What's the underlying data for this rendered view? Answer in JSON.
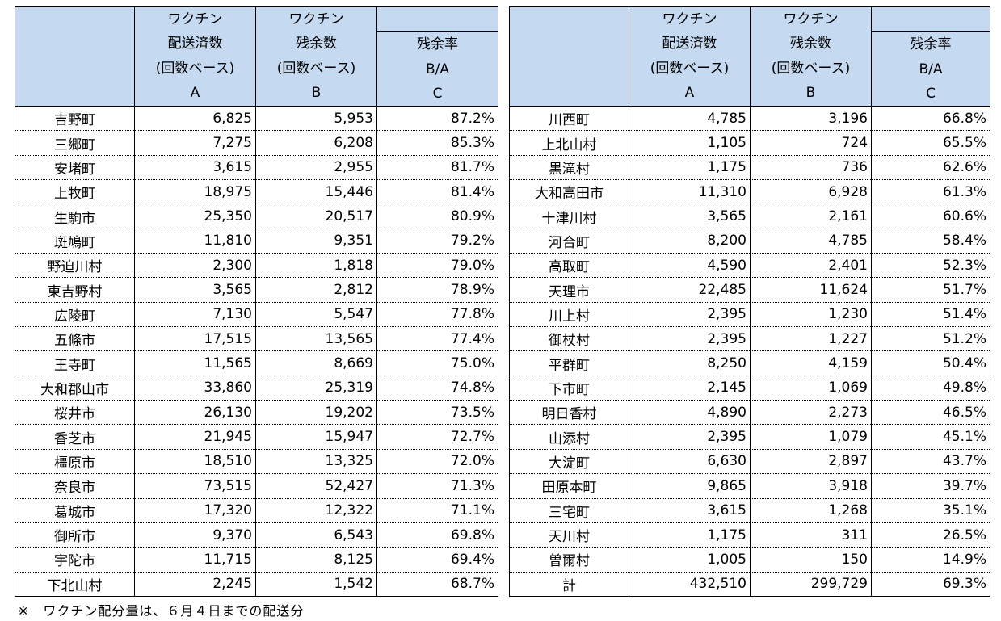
{
  "headers": {
    "col_a": [
      "ワクチン",
      "配送済数",
      "(回数ベース)",
      "A"
    ],
    "col_b": [
      "ワクチン",
      "残余数",
      "(回数ベース)",
      "B"
    ],
    "col_c": [
      "",
      "残余率",
      "B/A",
      "C"
    ]
  },
  "left_table": [
    {
      "name": "吉野町",
      "a": "6,825",
      "b": "5,953",
      "c": "87.2%"
    },
    {
      "name": "三郷町",
      "a": "7,275",
      "b": "6,208",
      "c": "85.3%"
    },
    {
      "name": "安堵町",
      "a": "3,615",
      "b": "2,955",
      "c": "81.7%"
    },
    {
      "name": "上牧町",
      "a": "18,975",
      "b": "15,446",
      "c": "81.4%"
    },
    {
      "name": "生駒市",
      "a": "25,350",
      "b": "20,517",
      "c": "80.9%"
    },
    {
      "name": "斑鳩町",
      "a": "11,810",
      "b": "9,351",
      "c": "79.2%"
    },
    {
      "name": "野迫川村",
      "a": "2,300",
      "b": "1,818",
      "c": "79.0%"
    },
    {
      "name": "東吉野村",
      "a": "3,565",
      "b": "2,812",
      "c": "78.9%"
    },
    {
      "name": "広陵町",
      "a": "7,130",
      "b": "5,547",
      "c": "77.8%"
    },
    {
      "name": "五條市",
      "a": "17,515",
      "b": "13,565",
      "c": "77.4%"
    },
    {
      "name": "王寺町",
      "a": "11,565",
      "b": "8,669",
      "c": "75.0%"
    },
    {
      "name": "大和郡山市",
      "a": "33,860",
      "b": "25,319",
      "c": "74.8%"
    },
    {
      "name": "桜井市",
      "a": "26,130",
      "b": "19,202",
      "c": "73.5%"
    },
    {
      "name": "香芝市",
      "a": "21,945",
      "b": "15,947",
      "c": "72.7%"
    },
    {
      "name": "橿原市",
      "a": "18,510",
      "b": "13,325",
      "c": "72.0%"
    },
    {
      "name": "奈良市",
      "a": "73,515",
      "b": "52,427",
      "c": "71.3%"
    },
    {
      "name": "葛城市",
      "a": "17,320",
      "b": "12,322",
      "c": "71.1%"
    },
    {
      "name": "御所市",
      "a": "9,370",
      "b": "6,543",
      "c": "69.8%"
    },
    {
      "name": "宇陀市",
      "a": "11,715",
      "b": "8,125",
      "c": "69.4%"
    },
    {
      "name": "下北山村",
      "a": "2,245",
      "b": "1,542",
      "c": "68.7%"
    }
  ],
  "right_table": [
    {
      "name": "川西町",
      "a": "4,785",
      "b": "3,196",
      "c": "66.8%"
    },
    {
      "name": "上北山村",
      "a": "1,105",
      "b": "724",
      "c": "65.5%"
    },
    {
      "name": "黒滝村",
      "a": "1,175",
      "b": "736",
      "c": "62.6%"
    },
    {
      "name": "大和高田市",
      "a": "11,310",
      "b": "6,928",
      "c": "61.3%"
    },
    {
      "name": "十津川村",
      "a": "3,565",
      "b": "2,161",
      "c": "60.6%"
    },
    {
      "name": "河合町",
      "a": "8,200",
      "b": "4,785",
      "c": "58.4%"
    },
    {
      "name": "高取町",
      "a": "4,590",
      "b": "2,401",
      "c": "52.3%"
    },
    {
      "name": "天理市",
      "a": "22,485",
      "b": "11,624",
      "c": "51.7%"
    },
    {
      "name": "川上村",
      "a": "2,395",
      "b": "1,230",
      "c": "51.4%"
    },
    {
      "name": "御杖村",
      "a": "2,395",
      "b": "1,227",
      "c": "51.2%"
    },
    {
      "name": "平群町",
      "a": "8,250",
      "b": "4,159",
      "c": "50.4%"
    },
    {
      "name": "下市町",
      "a": "2,145",
      "b": "1,069",
      "c": "49.8%"
    },
    {
      "name": "明日香村",
      "a": "4,890",
      "b": "2,273",
      "c": "46.5%"
    },
    {
      "name": "山添村",
      "a": "2,395",
      "b": "1,079",
      "c": "45.1%"
    },
    {
      "name": "大淀町",
      "a": "6,630",
      "b": "2,897",
      "c": "43.7%"
    },
    {
      "name": "田原本町",
      "a": "9,865",
      "b": "3,918",
      "c": "39.7%"
    },
    {
      "name": "三宅町",
      "a": "3,615",
      "b": "1,268",
      "c": "35.1%"
    },
    {
      "name": "天川村",
      "a": "1,175",
      "b": "311",
      "c": "26.5%"
    },
    {
      "name": "曽爾村",
      "a": "1,005",
      "b": "150",
      "c": "14.9%"
    },
    {
      "name": "計",
      "a": "432,510",
      "b": "299,729",
      "c": "69.3%"
    }
  ],
  "footnote": "※　ワクチン配分量は、６月４日までの配送分",
  "colors": {
    "header_bg": "#c5d9f1",
    "border": "#000000"
  }
}
